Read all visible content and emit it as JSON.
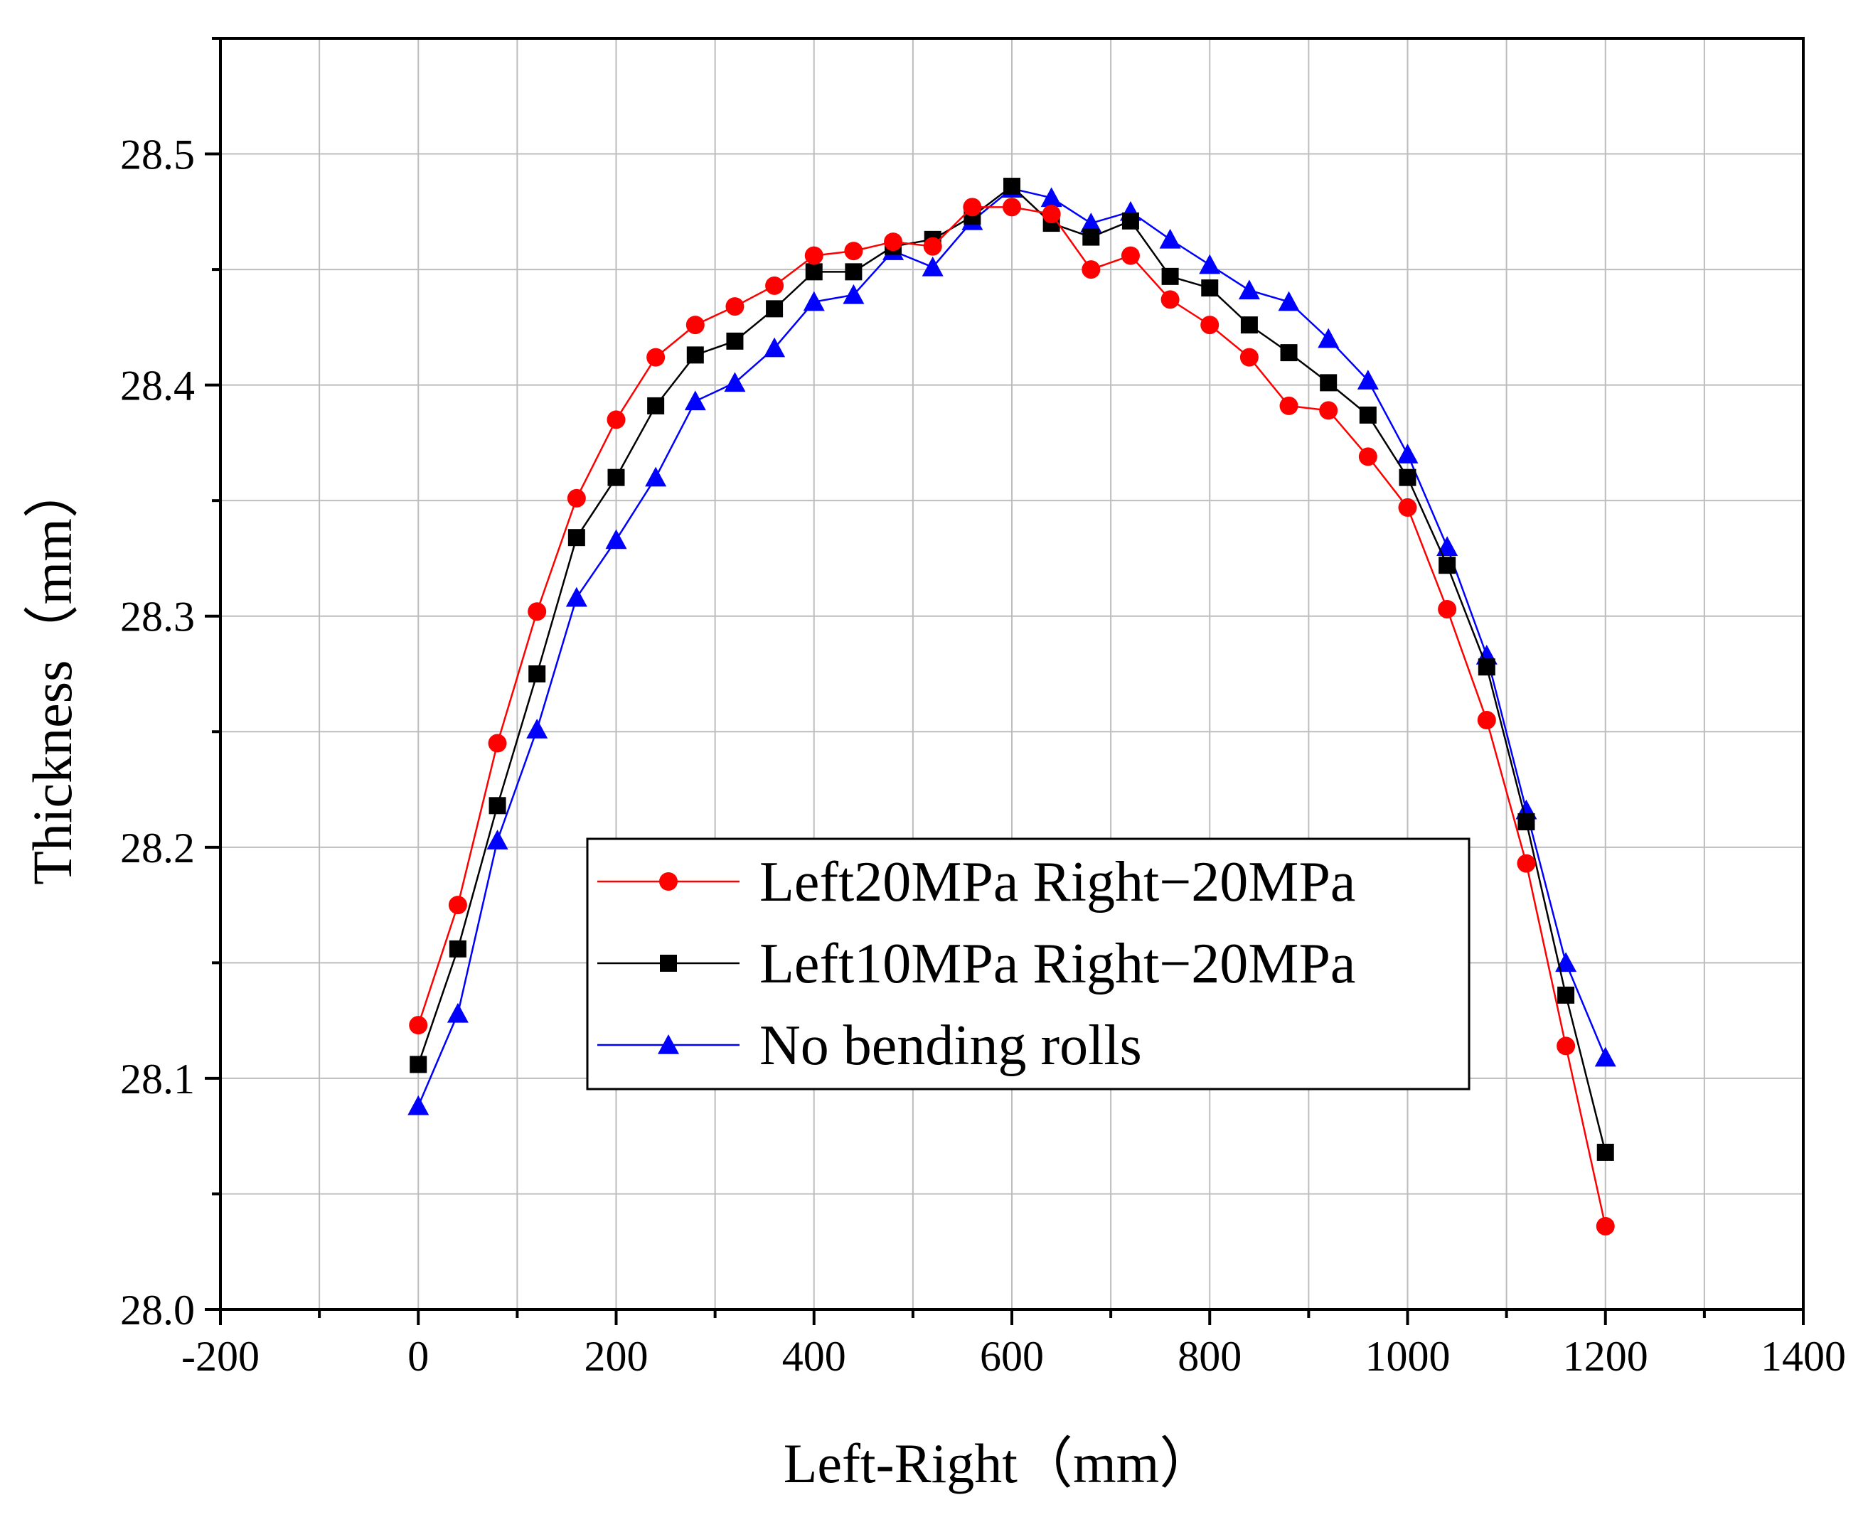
{
  "chart_data": {
    "type": "line",
    "title": "",
    "xlabel": "Left-Right（mm）",
    "ylabel": "Thickness（mm）",
    "xlim": [
      -200,
      1400
    ],
    "ylim": [
      28.0,
      28.55
    ],
    "xticks": [
      -200,
      0,
      200,
      400,
      600,
      800,
      1000,
      1200,
      1400
    ],
    "xtick_labels": [
      "-200",
      "0",
      "200",
      "400",
      "600",
      "800",
      "1000",
      "1200",
      "1400"
    ],
    "yticks": [
      28.0,
      28.1,
      28.2,
      28.3,
      28.4,
      28.5
    ],
    "ytick_labels": [
      "28.0",
      "28.1",
      "28.2",
      "28.3",
      "28.4",
      "28.5"
    ],
    "grid": true,
    "legend_position": "center",
    "x": [
      0,
      40,
      80,
      120,
      160,
      200,
      240,
      280,
      320,
      360,
      400,
      440,
      480,
      520,
      560,
      600,
      640,
      680,
      720,
      760,
      800,
      840,
      880,
      920,
      960,
      1000,
      1040,
      1080,
      1120,
      1160,
      1200
    ],
    "series": [
      {
        "name": "Left20MPa Right−20MPa",
        "color": "#ff0000",
        "marker": "circle",
        "values": [
          28.123,
          28.175,
          28.245,
          28.302,
          28.351,
          28.385,
          28.412,
          28.426,
          28.434,
          28.443,
          28.456,
          28.458,
          28.462,
          28.46,
          28.477,
          28.477,
          28.474,
          28.45,
          28.456,
          28.437,
          28.426,
          28.412,
          28.391,
          28.389,
          28.369,
          28.347,
          28.303,
          28.255,
          28.193,
          28.114,
          28.036
        ]
      },
      {
        "name": "Left10MPa Right−20MPa",
        "color": "#000000",
        "marker": "square",
        "values": [
          28.106,
          28.156,
          28.218,
          28.275,
          28.334,
          28.36,
          28.391,
          28.413,
          28.419,
          28.433,
          28.449,
          28.449,
          28.46,
          28.463,
          28.473,
          28.486,
          28.47,
          28.464,
          28.471,
          28.447,
          28.442,
          28.426,
          28.414,
          28.401,
          28.387,
          28.36,
          28.322,
          28.278,
          28.211,
          28.136,
          28.068
        ]
      },
      {
        "name": "No bending rolls",
        "color": "#0000ff",
        "marker": "triangle",
        "values": [
          28.088,
          28.128,
          28.203,
          28.251,
          28.308,
          28.333,
          28.36,
          28.393,
          28.401,
          28.416,
          28.436,
          28.439,
          28.458,
          28.451,
          28.471,
          28.485,
          28.481,
          28.47,
          28.475,
          28.463,
          28.452,
          28.441,
          28.436,
          28.42,
          28.402,
          28.37,
          28.33,
          28.283,
          28.216,
          28.15,
          28.109
        ]
      }
    ]
  }
}
